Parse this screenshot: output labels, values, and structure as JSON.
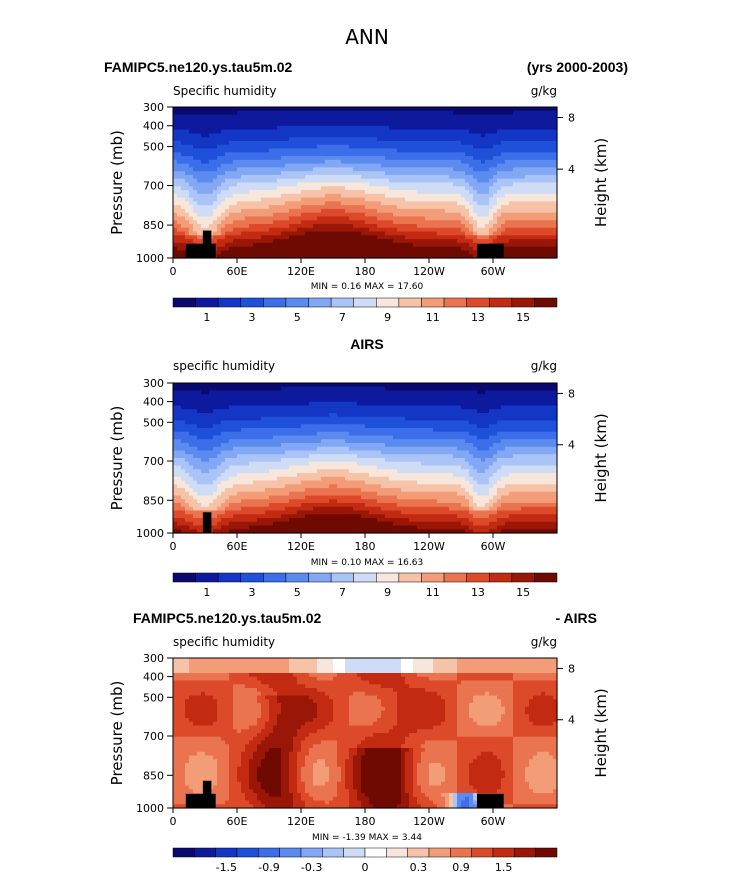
{
  "figure_title": "ANN",
  "colors": {
    "abs_scale": [
      "#0a0a6e",
      "#0d1a9e",
      "#1436c4",
      "#1f50da",
      "#3b6ee8",
      "#5c8bf0",
      "#82a8f5",
      "#aac4f8",
      "#cfdcf5",
      "#f7e6dc",
      "#f7c3a8",
      "#f29c78",
      "#ea7450",
      "#dd4a2a",
      "#c22a12",
      "#9a1606",
      "#6e0a02"
    ],
    "anom_scale": [
      "#0a0a6e",
      "#0d1a9e",
      "#1436c4",
      "#1f50da",
      "#3b6ee8",
      "#5c8bf0",
      "#82a8f5",
      "#aac4f8",
      "#cfdcf5",
      "#ffffff",
      "#f7e6dc",
      "#f7c3a8",
      "#f29c78",
      "#ea7450",
      "#dd4a2a",
      "#c22a12",
      "#9a1606",
      "#6e0a02"
    ],
    "land": "#000000"
  },
  "chart_data": [
    {
      "type": "heatmap",
      "title_left": "FAMIPC5.ne120.ys.tau5m.02",
      "title_right": "(yrs 2000-2003)",
      "subtitle_left": "Specific humidity",
      "subtitle_right": "g/kg",
      "ylabel": "Pressure (mb)",
      "ylabel_right": "Height (km)",
      "yticks": [
        "300",
        "400",
        "500",
        "700",
        "850",
        "1000"
      ],
      "ytick_values": [
        300,
        400,
        500,
        700,
        850,
        1000
      ],
      "yticks_right": [
        "8",
        "4"
      ],
      "ytick_right_pressures": [
        356,
        616
      ],
      "xticks": [
        "0",
        "60E",
        "120E",
        "180",
        "120W",
        "60W"
      ],
      "xtick_values": [
        0,
        60,
        120,
        180,
        240,
        300
      ],
      "xlim": [
        0,
        360
      ],
      "ylim": [
        1000,
        300
      ],
      "min_text": "MIN =    0.16   MAX =    17.60",
      "colorbar_labels": [
        "1",
        "3",
        "5",
        "7",
        "9",
        "11",
        "13",
        "15"
      ],
      "colorbar_label_bins": [
        1,
        3,
        5,
        7,
        9,
        11,
        13,
        15
      ],
      "scale": "abs_scale"
    },
    {
      "type": "heatmap",
      "title_left": "AIRS",
      "title_right": "",
      "subtitle_left": "specific humidity",
      "subtitle_right": "g/kg",
      "ylabel": "Pressure (mb)",
      "ylabel_right": "Height (km)",
      "yticks": [
        "300",
        "400",
        "500",
        "700",
        "850",
        "1000"
      ],
      "ytick_values": [
        300,
        400,
        500,
        700,
        850,
        1000
      ],
      "yticks_right": [
        "8",
        "4"
      ],
      "ytick_right_pressures": [
        356,
        616
      ],
      "xticks": [
        "0",
        "60E",
        "120E",
        "180",
        "120W",
        "60W"
      ],
      "xtick_values": [
        0,
        60,
        120,
        180,
        240,
        300
      ],
      "xlim": [
        0,
        360
      ],
      "ylim": [
        1000,
        300
      ],
      "min_text": "MIN =    0.10   MAX =    16.63",
      "colorbar_labels": [
        "1",
        "3",
        "5",
        "7",
        "9",
        "11",
        "13",
        "15"
      ],
      "colorbar_label_bins": [
        1,
        3,
        5,
        7,
        9,
        11,
        13,
        15
      ],
      "scale": "abs_scale"
    },
    {
      "type": "heatmap",
      "title_left": "FAMIPC5.ne120.ys.tau5m.02",
      "title_right": "- AIRS",
      "subtitle_left": "specific humidity",
      "subtitle_right": "g/kg",
      "ylabel": "Pressure (mb)",
      "ylabel_right": "Height (km)",
      "yticks": [
        "300",
        "400",
        "500",
        "700",
        "850",
        "1000"
      ],
      "ytick_values": [
        300,
        400,
        500,
        700,
        850,
        1000
      ],
      "yticks_right": [
        "8",
        "4"
      ],
      "ytick_right_pressures": [
        356,
        616
      ],
      "xticks": [
        "0",
        "60E",
        "120E",
        "180",
        "120W",
        "60W"
      ],
      "xtick_values": [
        0,
        60,
        120,
        180,
        240,
        300
      ],
      "xlim": [
        0,
        360
      ],
      "ylim": [
        1000,
        300
      ],
      "min_text": "MIN =   -1.39   MAX =    3.44",
      "colorbar_labels": [
        "-1.5",
        "-0.9",
        "-0.3",
        "0",
        "0.3",
        "0.9",
        "1.5"
      ],
      "colorbar_label_bins": [
        2,
        4,
        6,
        8.5,
        11,
        13,
        15
      ],
      "scale": "anom_scale"
    }
  ]
}
